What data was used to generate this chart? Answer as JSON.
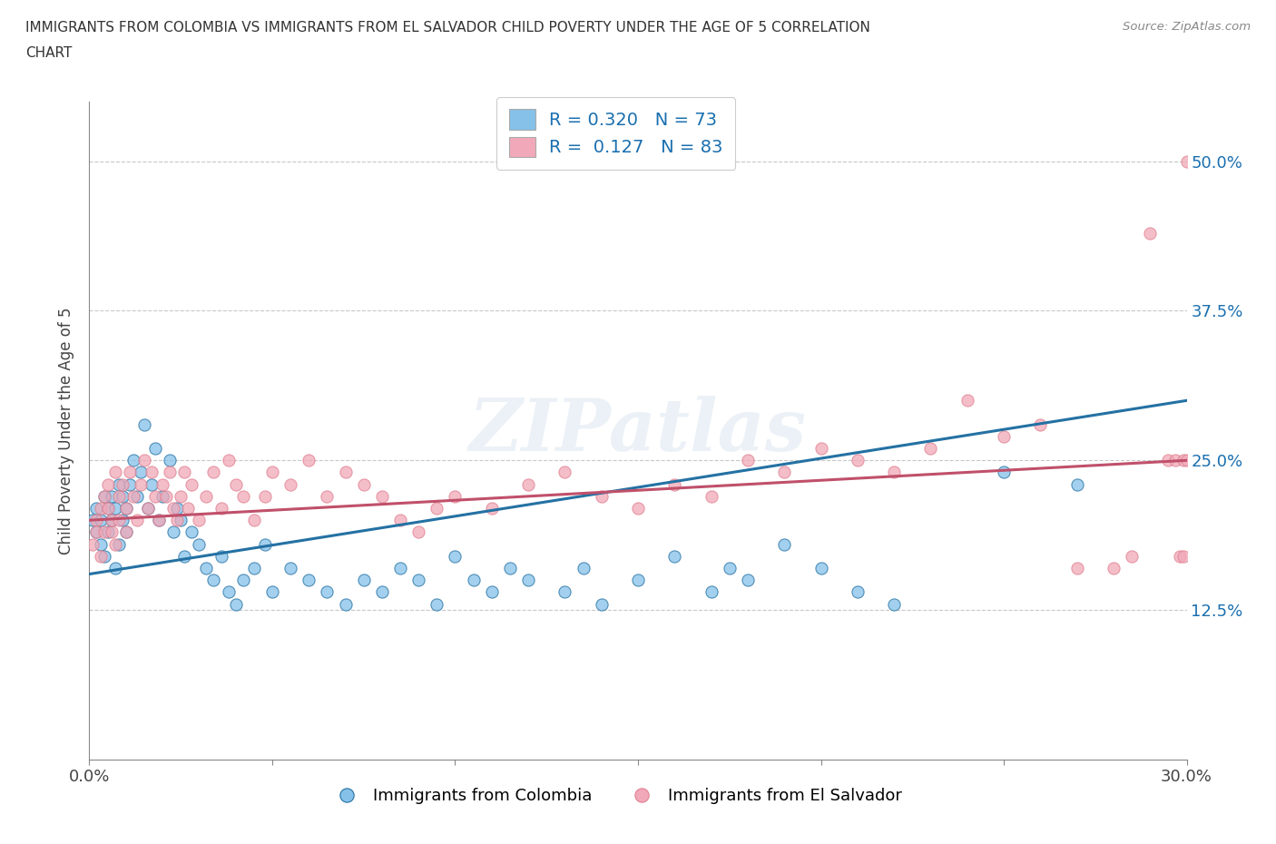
{
  "title": "IMMIGRANTS FROM COLOMBIA VS IMMIGRANTS FROM EL SALVADOR CHILD POVERTY UNDER THE AGE OF 5 CORRELATION\nCHART",
  "source_text": "Source: ZipAtlas.com",
  "ylabel": "Child Poverty Under the Age of 5",
  "xlim": [
    0.0,
    0.3
  ],
  "ylim": [
    0.0,
    0.55
  ],
  "x_ticks": [
    0.0,
    0.05,
    0.1,
    0.15,
    0.2,
    0.25,
    0.3
  ],
  "x_tick_labels": [
    "0.0%",
    "",
    "",
    "",
    "",
    "",
    "30.0%"
  ],
  "y_ticks": [
    0.0,
    0.125,
    0.25,
    0.375,
    0.5
  ],
  "y_tick_labels": [
    "",
    "12.5%",
    "25.0%",
    "37.5%",
    "50.0%"
  ],
  "color_colombia": "#85c1e9",
  "color_elsalvador": "#f1a8b8",
  "line_color_colombia": "#2471a3",
  "line_color_elsalvador": "#c0506a",
  "R_colombia": 0.32,
  "N_colombia": 73,
  "R_elsalvador": 0.127,
  "N_elsalvador": 83,
  "legend_label_colombia": "Immigrants from Colombia",
  "legend_label_elsalvador": "Immigrants from El Salvador",
  "watermark": "ZIPatlas",
  "colombia_x": [
    0.001,
    0.002,
    0.002,
    0.003,
    0.003,
    0.004,
    0.004,
    0.005,
    0.005,
    0.006,
    0.006,
    0.007,
    0.007,
    0.008,
    0.008,
    0.009,
    0.009,
    0.01,
    0.01,
    0.011,
    0.012,
    0.013,
    0.014,
    0.015,
    0.016,
    0.017,
    0.018,
    0.019,
    0.02,
    0.022,
    0.023,
    0.024,
    0.025,
    0.026,
    0.028,
    0.03,
    0.032,
    0.034,
    0.036,
    0.038,
    0.04,
    0.042,
    0.045,
    0.048,
    0.05,
    0.055,
    0.06,
    0.065,
    0.07,
    0.075,
    0.08,
    0.085,
    0.09,
    0.095,
    0.1,
    0.105,
    0.11,
    0.115,
    0.12,
    0.13,
    0.135,
    0.14,
    0.15,
    0.16,
    0.17,
    0.175,
    0.18,
    0.19,
    0.2,
    0.21,
    0.22,
    0.25,
    0.27
  ],
  "colombia_y": [
    0.2,
    0.19,
    0.21,
    0.18,
    0.2,
    0.22,
    0.17,
    0.21,
    0.19,
    0.2,
    0.22,
    0.16,
    0.21,
    0.23,
    0.18,
    0.2,
    0.22,
    0.19,
    0.21,
    0.23,
    0.25,
    0.22,
    0.24,
    0.28,
    0.21,
    0.23,
    0.26,
    0.2,
    0.22,
    0.25,
    0.19,
    0.21,
    0.2,
    0.17,
    0.19,
    0.18,
    0.16,
    0.15,
    0.17,
    0.14,
    0.13,
    0.15,
    0.16,
    0.18,
    0.14,
    0.16,
    0.15,
    0.14,
    0.13,
    0.15,
    0.14,
    0.16,
    0.15,
    0.13,
    0.17,
    0.15,
    0.14,
    0.16,
    0.15,
    0.14,
    0.16,
    0.13,
    0.15,
    0.17,
    0.14,
    0.16,
    0.15,
    0.18,
    0.16,
    0.14,
    0.13,
    0.24,
    0.23
  ],
  "elsalvador_x": [
    0.001,
    0.002,
    0.002,
    0.003,
    0.003,
    0.004,
    0.004,
    0.005,
    0.005,
    0.006,
    0.006,
    0.007,
    0.007,
    0.008,
    0.008,
    0.009,
    0.01,
    0.01,
    0.011,
    0.012,
    0.013,
    0.014,
    0.015,
    0.016,
    0.017,
    0.018,
    0.019,
    0.02,
    0.021,
    0.022,
    0.023,
    0.024,
    0.025,
    0.026,
    0.027,
    0.028,
    0.03,
    0.032,
    0.034,
    0.036,
    0.038,
    0.04,
    0.042,
    0.045,
    0.048,
    0.05,
    0.055,
    0.06,
    0.065,
    0.07,
    0.075,
    0.08,
    0.085,
    0.09,
    0.095,
    0.1,
    0.11,
    0.12,
    0.13,
    0.14,
    0.15,
    0.16,
    0.17,
    0.18,
    0.19,
    0.2,
    0.21,
    0.22,
    0.23,
    0.24,
    0.25,
    0.26,
    0.27,
    0.28,
    0.285,
    0.29,
    0.295,
    0.297,
    0.298,
    0.299,
    0.299,
    0.3,
    0.3
  ],
  "elsalvador_y": [
    0.18,
    0.2,
    0.19,
    0.21,
    0.17,
    0.22,
    0.19,
    0.21,
    0.23,
    0.19,
    0.2,
    0.24,
    0.18,
    0.22,
    0.2,
    0.23,
    0.19,
    0.21,
    0.24,
    0.22,
    0.2,
    0.23,
    0.25,
    0.21,
    0.24,
    0.22,
    0.2,
    0.23,
    0.22,
    0.24,
    0.21,
    0.2,
    0.22,
    0.24,
    0.21,
    0.23,
    0.2,
    0.22,
    0.24,
    0.21,
    0.25,
    0.23,
    0.22,
    0.2,
    0.22,
    0.24,
    0.23,
    0.25,
    0.22,
    0.24,
    0.23,
    0.22,
    0.2,
    0.19,
    0.21,
    0.22,
    0.21,
    0.23,
    0.24,
    0.22,
    0.21,
    0.23,
    0.22,
    0.25,
    0.24,
    0.26,
    0.25,
    0.24,
    0.26,
    0.3,
    0.27,
    0.28,
    0.16,
    0.16,
    0.17,
    0.44,
    0.25,
    0.25,
    0.17,
    0.17,
    0.25,
    0.25,
    0.5
  ]
}
